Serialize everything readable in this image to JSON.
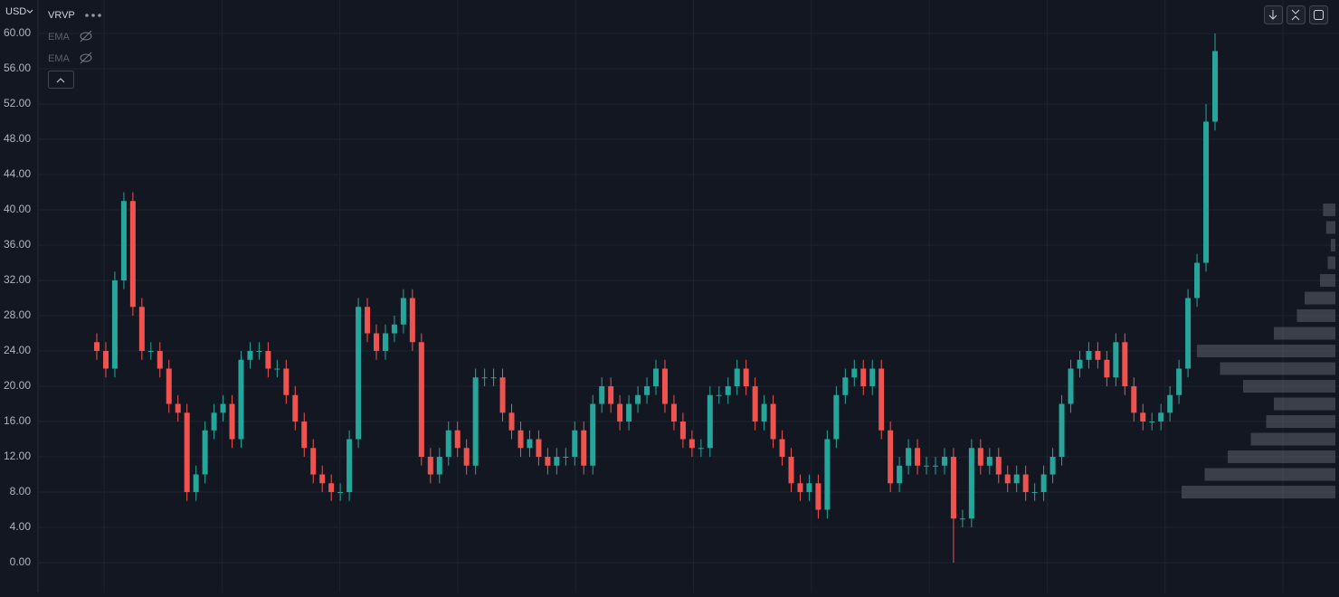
{
  "toolbar": {
    "currency": "USD",
    "indicator": "VRVP",
    "studies": [
      "EMA",
      "EMA"
    ]
  },
  "chart_data": {
    "type": "candlestick",
    "up_color": "#26a69a",
    "down_color": "#ef5350",
    "ylim": [
      -3.38,
      63.79
    ],
    "yticks": [
      {
        "value": 0,
        "label": "0.00"
      },
      {
        "value": 4,
        "label": "4.00"
      },
      {
        "value": 8,
        "label": "8.00"
      },
      {
        "value": 12,
        "label": "12.00"
      },
      {
        "value": 16,
        "label": "16.00"
      },
      {
        "value": 20,
        "label": "20.00"
      },
      {
        "value": 24,
        "label": "24.00"
      },
      {
        "value": 28,
        "label": "28.00"
      },
      {
        "value": 32,
        "label": "32.00"
      },
      {
        "value": 36,
        "label": "36.00"
      },
      {
        "value": 40,
        "label": "40.00"
      },
      {
        "value": 44,
        "label": "44.00"
      },
      {
        "value": 48,
        "label": "48.00"
      },
      {
        "value": 52,
        "label": "52.00"
      },
      {
        "value": 56,
        "label": "56.00"
      },
      {
        "value": 60,
        "label": "60.00"
      }
    ],
    "grid": true,
    "open": [
      25,
      24,
      22,
      32,
      41,
      29,
      24,
      24,
      22,
      18,
      17,
      8,
      10,
      15,
      17,
      18,
      14,
      23,
      24,
      24,
      22,
      22,
      19,
      16,
      13,
      10,
      9,
      8,
      8,
      14,
      29,
      26,
      24,
      26,
      27,
      30,
      25,
      12,
      10,
      12,
      15,
      13,
      11,
      21,
      21,
      21,
      17,
      15,
      13,
      14,
      12,
      11,
      12,
      12,
      15,
      11,
      18,
      20,
      18,
      16,
      18,
      19,
      20,
      22,
      18,
      16,
      14,
      13,
      13,
      19,
      19,
      20,
      22,
      20,
      16,
      18,
      14,
      12,
      9,
      8,
      9,
      6,
      14,
      19,
      21,
      22,
      20,
      22,
      15,
      9,
      11,
      13,
      11,
      11,
      11,
      12,
      5,
      5,
      13,
      11,
      12,
      10,
      9,
      10,
      8,
      8,
      10,
      12,
      18,
      22,
      23,
      24,
      23,
      21,
      25,
      20,
      17,
      16,
      16,
      17,
      19,
      22,
      30,
      34,
      50
    ],
    "high": [
      26,
      25,
      33,
      42,
      42,
      30,
      25,
      25,
      23,
      19,
      18,
      11,
      16,
      18,
      19,
      19,
      24,
      25,
      25,
      25,
      23,
      23,
      20,
      17,
      14,
      11,
      10,
      9,
      15,
      30,
      30,
      27,
      27,
      28,
      31,
      31,
      26,
      13,
      13,
      16,
      16,
      14,
      22,
      22,
      22,
      22,
      18,
      16,
      15,
      15,
      13,
      13,
      13,
      16,
      16,
      19,
      21,
      21,
      19,
      19,
      20,
      21,
      23,
      23,
      19,
      17,
      15,
      14,
      20,
      20,
      21,
      23,
      23,
      21,
      19,
      19,
      15,
      13,
      10,
      10,
      10,
      15,
      20,
      22,
      23,
      23,
      23,
      23,
      16,
      12,
      14,
      14,
      12,
      12,
      13,
      13,
      6,
      14,
      14,
      13,
      13,
      11,
      11,
      11,
      9,
      11,
      13,
      19,
      23,
      24,
      25,
      25,
      24,
      26,
      26,
      21,
      18,
      17,
      18,
      20,
      23,
      31,
      35,
      52,
      60
    ],
    "low": [
      23,
      21,
      21,
      31,
      28,
      23,
      23,
      21,
      17,
      16,
      7,
      7,
      9,
      14,
      16,
      13,
      13,
      22,
      23,
      21,
      21,
      18,
      15,
      12,
      9,
      8,
      7,
      7,
      7,
      13,
      25,
      23,
      23,
      25,
      26,
      24,
      11,
      9,
      9,
      11,
      12,
      10,
      10,
      20,
      20,
      16,
      14,
      12,
      12,
      11,
      10,
      10,
      11,
      11,
      10,
      10,
      17,
      17,
      15,
      15,
      17,
      18,
      19,
      17,
      15,
      13,
      12,
      12,
      12,
      18,
      18,
      19,
      19,
      15,
      15,
      13,
      11,
      8,
      7,
      7,
      5,
      5,
      13,
      18,
      20,
      19,
      19,
      14,
      8,
      8,
      10,
      10,
      10,
      10,
      10,
      0,
      4,
      4,
      10,
      10,
      9,
      8,
      8,
      7,
      7,
      7,
      9,
      11,
      17,
      21,
      22,
      22,
      20,
      20,
      19,
      16,
      15,
      15,
      15,
      16,
      18,
      21,
      29,
      33,
      49
    ],
    "close": [
      24,
      22,
      32,
      41,
      29,
      24,
      24,
      22,
      18,
      17,
      8,
      10,
      15,
      17,
      18,
      14,
      23,
      24,
      24,
      22,
      22,
      19,
      16,
      13,
      10,
      9,
      8,
      8,
      14,
      29,
      26,
      24,
      26,
      27,
      30,
      25,
      12,
      10,
      12,
      15,
      13,
      11,
      21,
      21,
      21,
      17,
      15,
      13,
      14,
      12,
      11,
      12,
      12,
      15,
      11,
      18,
      20,
      18,
      16,
      18,
      19,
      20,
      22,
      18,
      16,
      14,
      13,
      13,
      19,
      19,
      20,
      22,
      20,
      16,
      18,
      14,
      12,
      9,
      8,
      9,
      6,
      14,
      19,
      21,
      22,
      20,
      22,
      15,
      9,
      11,
      13,
      11,
      11,
      11,
      12,
      5,
      5,
      13,
      11,
      12,
      10,
      9,
      10,
      8,
      8,
      10,
      12,
      18,
      22,
      23,
      24,
      23,
      21,
      25,
      20,
      17,
      16,
      16,
      17,
      19,
      22,
      30,
      34,
      50,
      58
    ],
    "volume_profile": {
      "color": "#5d606b",
      "prices": [
        8,
        10,
        12,
        14,
        16,
        18,
        20,
        22,
        24,
        26,
        28,
        30,
        32,
        34,
        36,
        38,
        40
      ],
      "volumes": [
        100,
        85,
        70,
        55,
        45,
        40,
        60,
        75,
        90,
        40,
        25,
        20,
        10,
        5,
        3,
        6,
        8
      ]
    }
  }
}
